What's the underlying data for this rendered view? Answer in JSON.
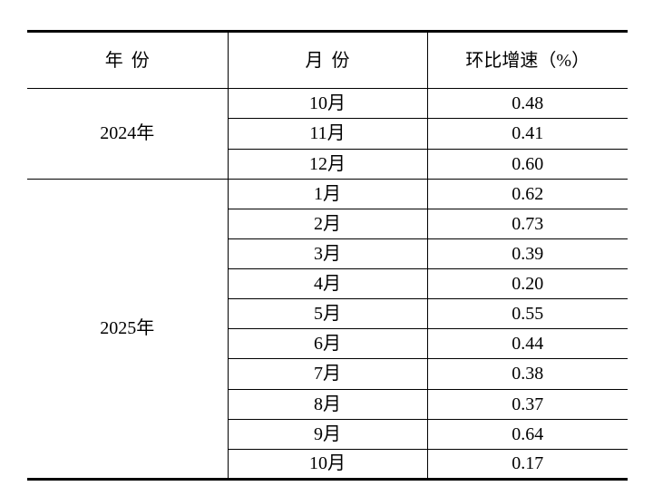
{
  "table": {
    "columns": [
      "年份",
      "月份",
      "环比增速（%）"
    ],
    "groups": [
      {
        "year": "2024年",
        "rows": [
          {
            "month": "10月",
            "value": "0.48"
          },
          {
            "month": "11月",
            "value": "0.41"
          },
          {
            "month": "12月",
            "value": "0.60"
          }
        ]
      },
      {
        "year": "2025年",
        "rows": [
          {
            "month": "1月",
            "value": "0.62"
          },
          {
            "month": "2月",
            "value": "0.73"
          },
          {
            "month": "3月",
            "value": "0.39"
          },
          {
            "month": "4月",
            "value": "0.20"
          },
          {
            "month": "5月",
            "value": "0.55"
          },
          {
            "month": "6月",
            "value": "0.44"
          },
          {
            "month": "7月",
            "value": "0.38"
          },
          {
            "month": "8月",
            "value": "0.37"
          },
          {
            "month": "9月",
            "value": "0.64"
          },
          {
            "month": "10月",
            "value": "0.17"
          }
        ]
      }
    ]
  },
  "colors": {
    "border": "#000000",
    "text": "#000000",
    "background": "#ffffff"
  }
}
